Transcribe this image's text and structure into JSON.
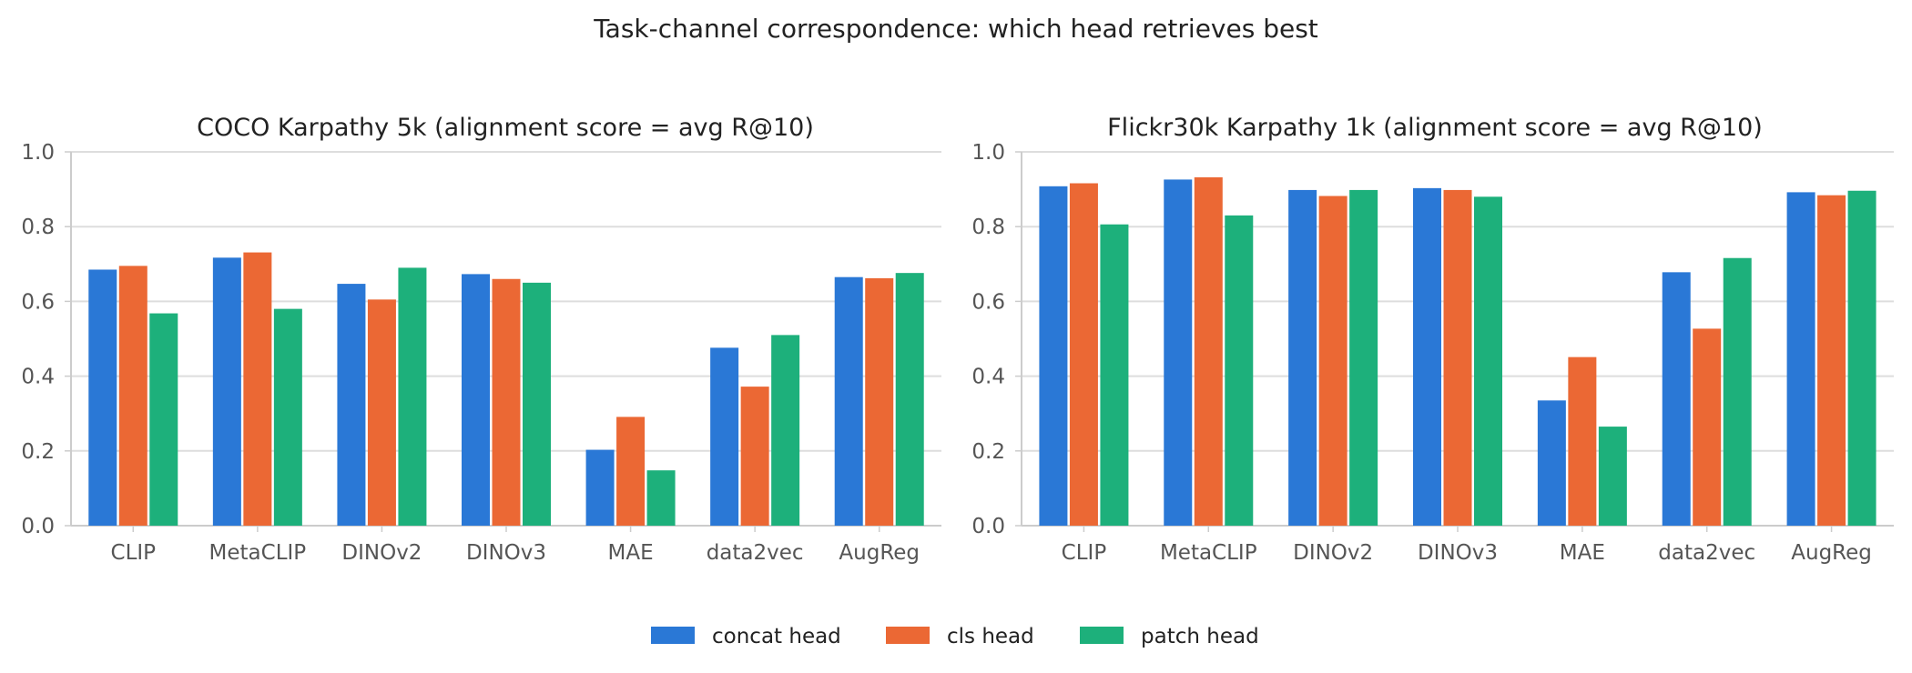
{
  "figure": {
    "title": "Task-channel correspondence: which head retrieves best"
  },
  "legend": {
    "placement": "bottom-center",
    "items": [
      {
        "label": "concat head",
        "color": "#2a78d6"
      },
      {
        "label": "cls head",
        "color": "#eb6834"
      },
      {
        "label": "patch head",
        "color": "#1db07b"
      }
    ]
  },
  "chart_data": [
    {
      "type": "bar",
      "title": "COCO Karpathy 5k (alignment score = avg R@10)",
      "categories": [
        "CLIP",
        "MetaCLIP",
        "DINOv2",
        "DINOv3",
        "MAE",
        "data2vec",
        "AugReg"
      ],
      "ylim": [
        0,
        1.0
      ],
      "yticks": [
        "0.0",
        "0.2",
        "0.4",
        "0.6",
        "0.8",
        "1.0"
      ],
      "grid": true,
      "series": [
        {
          "name": "concat head",
          "color": "#2a78d6",
          "values": [
            0.685,
            0.717,
            0.647,
            0.673,
            0.203,
            0.476,
            0.665
          ]
        },
        {
          "name": "cls head",
          "color": "#eb6834",
          "values": [
            0.695,
            0.731,
            0.605,
            0.66,
            0.291,
            0.372,
            0.662
          ]
        },
        {
          "name": "patch head",
          "color": "#1db07b",
          "values": [
            0.568,
            0.58,
            0.69,
            0.65,
            0.148,
            0.51,
            0.676
          ]
        }
      ]
    },
    {
      "type": "bar",
      "title": "Flickr30k Karpathy 1k (alignment score = avg R@10)",
      "categories": [
        "CLIP",
        "MetaCLIP",
        "DINOv2",
        "DINOv3",
        "MAE",
        "data2vec",
        "AugReg"
      ],
      "ylim": [
        0,
        1.0
      ],
      "yticks": [
        "0.0",
        "0.2",
        "0.4",
        "0.6",
        "0.8",
        "1.0"
      ],
      "grid": true,
      "series": [
        {
          "name": "concat head",
          "color": "#2a78d6",
          "values": [
            0.908,
            0.926,
            0.898,
            0.903,
            0.335,
            0.678,
            0.892
          ]
        },
        {
          "name": "cls head",
          "color": "#eb6834",
          "values": [
            0.916,
            0.932,
            0.882,
            0.898,
            0.451,
            0.527,
            0.884
          ]
        },
        {
          "name": "patch head",
          "color": "#1db07b",
          "values": [
            0.806,
            0.83,
            0.898,
            0.88,
            0.265,
            0.716,
            0.896
          ]
        }
      ]
    }
  ]
}
